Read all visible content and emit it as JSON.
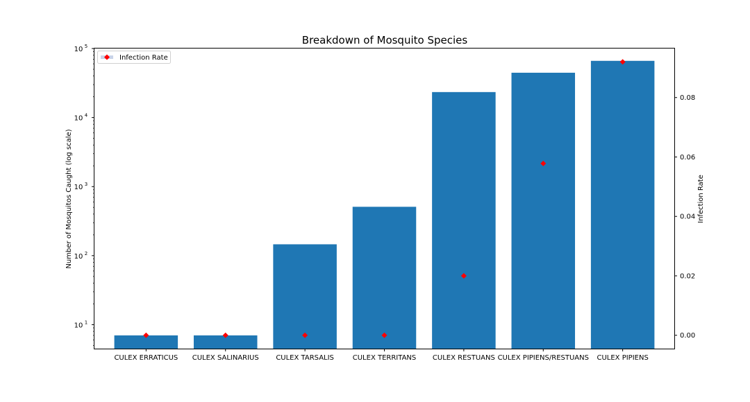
{
  "chart_data": {
    "type": "bar",
    "title": "Breakdown of Mosquito Species",
    "xlabel": "",
    "ylabel": "Number of Mosquitos Caught (log scale)",
    "y2label": "Infection Rate",
    "yscale": "log",
    "ylim": [
      4.5,
      100000
    ],
    "y2lim": [
      -0.0045,
      0.0965
    ],
    "categories": [
      "CULEX ERRATICUS",
      "CULEX SALINARIUS",
      "CULEX TARSALIS",
      "CULEX TERRITANS",
      "CULEX RESTUANS",
      "CULEX PIPIENS/RESTUANS",
      "CULEX PIPIENS"
    ],
    "series": [
      {
        "values": [
          7,
          7,
          146,
          510,
          23400,
          44600,
          66300
        ],
        "color": "#1f77b4",
        "axis": "left"
      },
      {
        "name": "Infection Rate",
        "values": [
          0.0,
          0.0,
          0.0,
          0.0,
          0.02,
          0.0578,
          0.092
        ],
        "color": "#ff0000",
        "marker": "diamond",
        "axis": "right"
      }
    ],
    "y_ticks": [
      {
        "value": 10,
        "label": "10",
        "exp": "1"
      },
      {
        "value": 100,
        "label": "10",
        "exp": "2"
      },
      {
        "value": 1000,
        "label": "10",
        "exp": "3"
      },
      {
        "value": 10000,
        "label": "10",
        "exp": "4"
      },
      {
        "value": 100000,
        "label": "10",
        "exp": "5"
      }
    ],
    "y2_ticks": [
      {
        "value": 0.0,
        "label": "0.00"
      },
      {
        "value": 0.02,
        "label": "0.02"
      },
      {
        "value": 0.04,
        "label": "0.04"
      },
      {
        "value": 0.06,
        "label": "0.06"
      },
      {
        "value": 0.08,
        "label": "0.08"
      }
    ],
    "legend": {
      "position": "upper-left",
      "entries": [
        "Infection Rate"
      ]
    },
    "grid": false
  }
}
